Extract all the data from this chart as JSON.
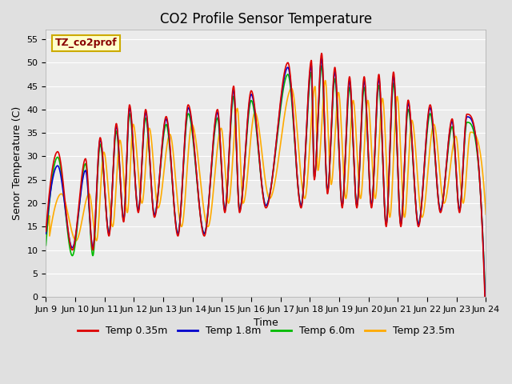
{
  "title": "CO2 Profile Sensor Temperature",
  "ylabel": "Senor Temperature (C)",
  "xlabel": "Time",
  "annotation_text": "TZ_co2prof",
  "legend_labels": [
    "Temp 0.35m",
    "Temp 1.8m",
    "Temp 6.0m",
    "Temp 23.5m"
  ],
  "line_colors": [
    "#dd0000",
    "#0000cc",
    "#00bb00",
    "#ffaa00"
  ],
  "ylim": [
    0,
    57
  ],
  "yticks": [
    0,
    5,
    10,
    15,
    20,
    25,
    30,
    35,
    40,
    45,
    50,
    55
  ],
  "xtick_labels": [
    "Jun 9",
    "Jun 10",
    "Jun 11",
    "Jun 12",
    "Jun 13",
    "Jun 14",
    "Jun 15",
    "Jun 16",
    "Jun 17",
    "Jun 18",
    "Jun 19",
    "Jun 20",
    "Jun 21",
    "Jun 22",
    "Jun 23",
    "Jun 24"
  ],
  "bg_color": "#e0e0e0",
  "plot_bg_color": "#ebebeb",
  "title_fontsize": 12,
  "label_fontsize": 9,
  "tick_fontsize": 8,
  "legend_fontsize": 9,
  "annotation_box_facecolor": "#ffffcc",
  "annotation_box_edgecolor": "#ccaa00",
  "annotation_text_color": "#880000",
  "line_width": 1.2,
  "figsize": [
    6.4,
    4.8
  ],
  "dpi": 100
}
